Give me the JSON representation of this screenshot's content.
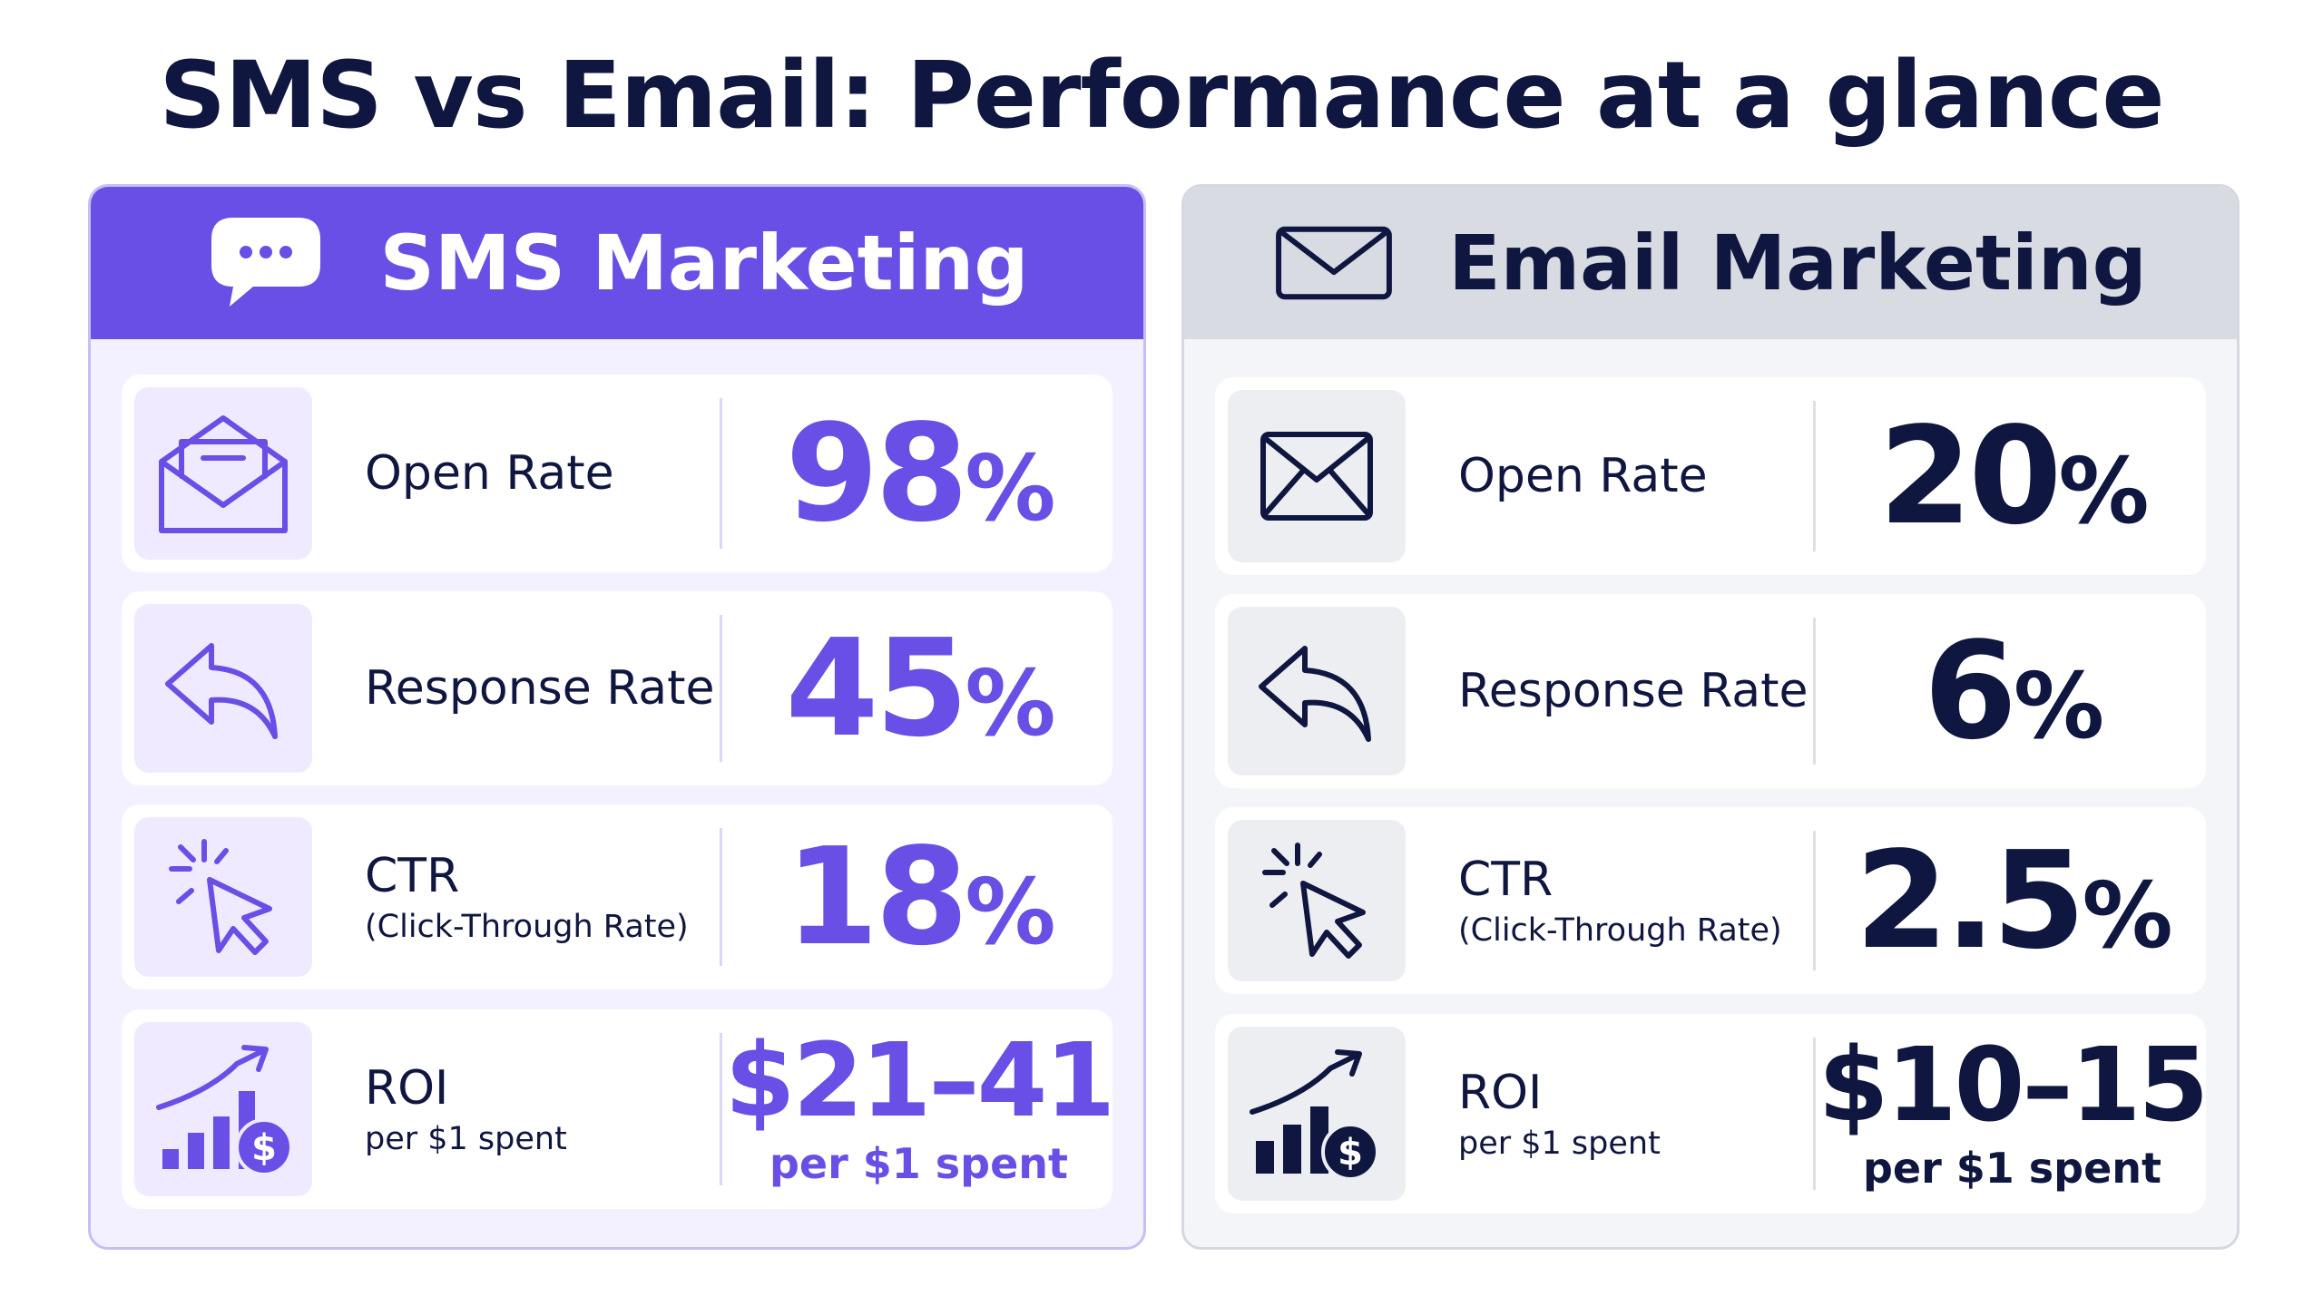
{
  "title": "SMS vs Email: Performance at a glance",
  "colors": {
    "sms_accent": "#6a4fe6",
    "navy": "#0f1640",
    "email_header": "#d8dbe2"
  },
  "sms": {
    "header": "SMS Marketing",
    "header_icon": "chat-bubble-icon",
    "metrics": [
      {
        "icon": "open-envelope-icon",
        "label": "Open Rate",
        "value": "98",
        "unit": "%"
      },
      {
        "icon": "reply-arrow-icon",
        "label": "Response Rate",
        "value": "45",
        "unit": "%"
      },
      {
        "icon": "click-cursor-icon",
        "label": "CTR",
        "sublabel": "(Click-Through Rate)",
        "value": "18",
        "unit": "%"
      },
      {
        "icon": "roi-growth-icon",
        "label": "ROI",
        "sublabel": "per $1 spent",
        "value": "$21–41",
        "value_sub": "per $1 spent"
      }
    ]
  },
  "email": {
    "header": "Email Marketing",
    "header_icon": "envelope-icon",
    "metrics": [
      {
        "icon": "envelope-icon",
        "label": "Open Rate",
        "value": "20",
        "unit": "%"
      },
      {
        "icon": "reply-arrow-icon",
        "label": "Response Rate",
        "value": "6",
        "unit": "%"
      },
      {
        "icon": "click-cursor-icon",
        "label": "CTR",
        "sublabel": "(Click-Through Rate)",
        "value": "2.5",
        "unit": "%"
      },
      {
        "icon": "roi-growth-icon",
        "label": "ROI",
        "sublabel": "per $1 spent",
        "value": "$10–15",
        "value_sub": "per $1 spent"
      }
    ]
  }
}
